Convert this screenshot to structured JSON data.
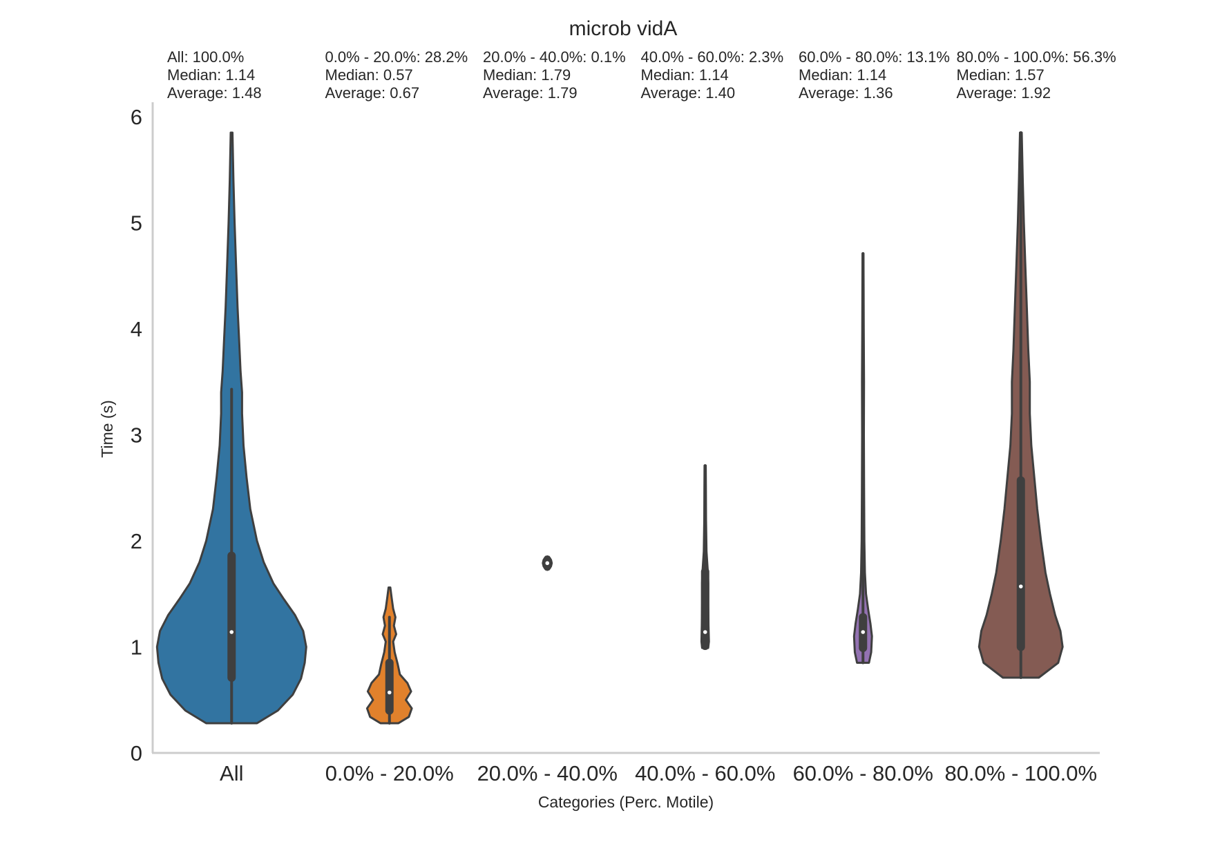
{
  "chart_data": {
    "type": "violin",
    "title": "microb vidA",
    "xlabel": "Categories (Perc. Motile)",
    "ylabel": "Time (s)",
    "ylim": [
      0,
      6.1
    ],
    "yticks": [
      "0",
      "1",
      "2",
      "3",
      "4",
      "5",
      "6"
    ],
    "grid": false,
    "categories": [
      "All",
      "0.0% - 20.0%",
      "20.0% - 40.0%",
      "40.0% - 60.0%",
      "60.0% - 80.0%",
      "80.0% - 100.0%"
    ],
    "stats_text": [
      {
        "line1": "All: 100.0%",
        "line2": "Median: 1.14",
        "line3": "Average:  1.48"
      },
      {
        "line1": "0.0% - 20.0%: 28.2%",
        "line2": "Median: 0.57",
        "line3": "Average:  0.67"
      },
      {
        "line1": "20.0% - 40.0%: 0.1%",
        "line2": "Median: 1.79",
        "line3": "Average:  1.79"
      },
      {
        "line1": "40.0% - 60.0%: 2.3%",
        "line2": "Median: 1.14",
        "line3": "Average:  1.40"
      },
      {
        "line1": "60.0% - 80.0%: 13.1%",
        "line2": "Median: 1.14",
        "line3": "Average:  1.36"
      },
      {
        "line1": "80.0% - 100.0%: 56.3%",
        "line2": "Median: 1.57",
        "line3": "Average:  1.92"
      }
    ],
    "series": [
      {
        "category": "All",
        "color": "#3274a1",
        "min": 0.28,
        "max": 5.85,
        "q1": 0.71,
        "median": 1.14,
        "q3": 1.86,
        "whisker_high": 3.43,
        "profile": [
          [
            0.28,
            0.34
          ],
          [
            0.4,
            0.62
          ],
          [
            0.55,
            0.82
          ],
          [
            0.7,
            0.93
          ],
          [
            0.85,
            0.98
          ],
          [
            1.0,
            1.0
          ],
          [
            1.15,
            0.96
          ],
          [
            1.3,
            0.85
          ],
          [
            1.45,
            0.7
          ],
          [
            1.6,
            0.56
          ],
          [
            1.8,
            0.43
          ],
          [
            2.0,
            0.34
          ],
          [
            2.3,
            0.25
          ],
          [
            2.6,
            0.2
          ],
          [
            2.9,
            0.16
          ],
          [
            3.2,
            0.14
          ],
          [
            3.4,
            0.14
          ],
          [
            3.6,
            0.12
          ],
          [
            3.9,
            0.1
          ],
          [
            4.2,
            0.08
          ],
          [
            4.6,
            0.06
          ],
          [
            5.0,
            0.04
          ],
          [
            5.4,
            0.025
          ],
          [
            5.85,
            0.012
          ]
        ]
      },
      {
        "category": "0.0% - 20.0%",
        "color": "#e1812c",
        "min": 0.28,
        "max": 1.56,
        "q1": 0.4,
        "median": 0.57,
        "q3": 0.85,
        "whisker_high": 1.28,
        "profile": [
          [
            0.28,
            0.12
          ],
          [
            0.34,
            0.26
          ],
          [
            0.42,
            0.3
          ],
          [
            0.5,
            0.22
          ],
          [
            0.58,
            0.29
          ],
          [
            0.66,
            0.24
          ],
          [
            0.74,
            0.14
          ],
          [
            0.84,
            0.11
          ],
          [
            0.95,
            0.07
          ],
          [
            1.05,
            0.05
          ],
          [
            1.12,
            0.09
          ],
          [
            1.2,
            0.06
          ],
          [
            1.28,
            0.08
          ],
          [
            1.36,
            0.05
          ],
          [
            1.46,
            0.03
          ],
          [
            1.56,
            0.012
          ]
        ]
      },
      {
        "category": "20.0% - 40.0%",
        "color": "#3a923a",
        "min": 1.73,
        "max": 1.85,
        "q1": 1.76,
        "median": 1.79,
        "q3": 1.82,
        "whisker_high": 1.85,
        "profile": [
          [
            1.73,
            0.02
          ],
          [
            1.76,
            0.05
          ],
          [
            1.79,
            0.06
          ],
          [
            1.82,
            0.05
          ],
          [
            1.85,
            0.02
          ]
        ]
      },
      {
        "category": "40.0% - 60.0%",
        "color": "#c03d3e",
        "min": 0.99,
        "max": 2.71,
        "q1": 1.01,
        "median": 1.14,
        "q3": 1.71,
        "whisker_high": 2.71,
        "profile": [
          [
            0.99,
            0.04
          ],
          [
            1.05,
            0.05
          ],
          [
            1.2,
            0.045
          ],
          [
            1.4,
            0.042
          ],
          [
            1.6,
            0.042
          ],
          [
            1.72,
            0.035
          ],
          [
            1.9,
            0.018
          ],
          [
            2.2,
            0.012
          ],
          [
            2.5,
            0.01
          ],
          [
            2.71,
            0.008
          ]
        ]
      },
      {
        "category": "60.0% - 80.0%",
        "color": "#9372b2",
        "min": 0.85,
        "max": 4.71,
        "q1": 0.99,
        "median": 1.14,
        "q3": 1.28,
        "whisker_high": 4.71,
        "profile": [
          [
            0.85,
            0.08
          ],
          [
            0.95,
            0.11
          ],
          [
            1.1,
            0.12
          ],
          [
            1.22,
            0.1
          ],
          [
            1.35,
            0.07
          ],
          [
            1.5,
            0.04
          ],
          [
            1.7,
            0.025
          ],
          [
            2.0,
            0.018
          ],
          [
            2.5,
            0.014
          ],
          [
            3.0,
            0.012
          ],
          [
            3.5,
            0.013
          ],
          [
            4.0,
            0.01
          ],
          [
            4.4,
            0.008
          ],
          [
            4.71,
            0.006
          ]
        ]
      },
      {
        "category": "80.0% - 100.0%",
        "color": "#845b53",
        "min": 0.71,
        "max": 5.85,
        "q1": 1.0,
        "median": 1.57,
        "q3": 2.57,
        "whisker_high": 5.85,
        "profile": [
          [
            0.71,
            0.24
          ],
          [
            0.85,
            0.5
          ],
          [
            1.0,
            0.56
          ],
          [
            1.15,
            0.53
          ],
          [
            1.3,
            0.46
          ],
          [
            1.5,
            0.39
          ],
          [
            1.7,
            0.33
          ],
          [
            2.0,
            0.27
          ],
          [
            2.3,
            0.22
          ],
          [
            2.6,
            0.18
          ],
          [
            2.9,
            0.14
          ],
          [
            3.2,
            0.12
          ],
          [
            3.5,
            0.12
          ],
          [
            3.8,
            0.1
          ],
          [
            4.2,
            0.08
          ],
          [
            4.6,
            0.06
          ],
          [
            5.0,
            0.04
          ],
          [
            5.4,
            0.025
          ],
          [
            5.85,
            0.012
          ]
        ]
      }
    ]
  }
}
